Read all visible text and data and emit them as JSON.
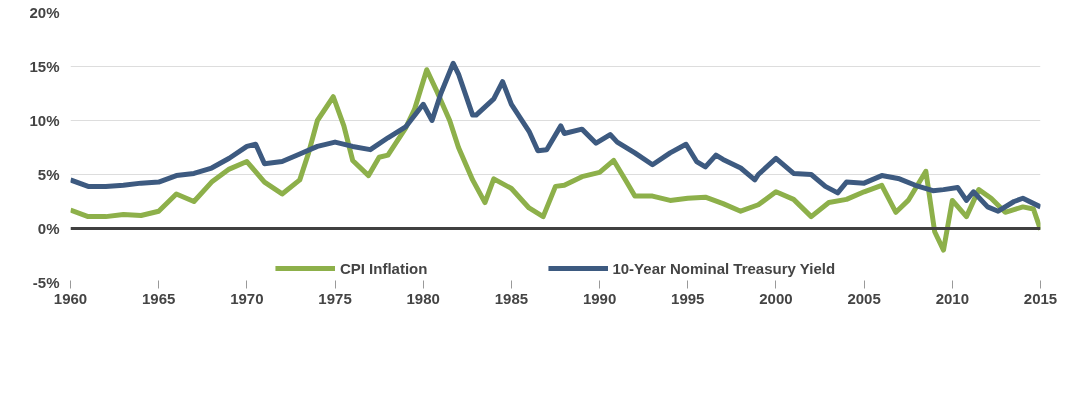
{
  "chart_data": {
    "type": "line",
    "xlim": [
      1960,
      2015
    ],
    "xticks": [
      1960,
      1965,
      1970,
      1975,
      1980,
      1985,
      1990,
      1995,
      2000,
      2005,
      2010,
      2015
    ],
    "ylim": [
      -5,
      20
    ],
    "yticks": [
      {
        "value": -5,
        "label": "-5%"
      },
      {
        "value": 0,
        "label": "0%"
      },
      {
        "value": 5,
        "label": "5%"
      },
      {
        "value": 10,
        "label": "10%"
      },
      {
        "value": 15,
        "label": "15%"
      },
      {
        "value": 20,
        "label": "20%"
      }
    ],
    "grid": "y",
    "legend": "bottom",
    "line_style": "solid",
    "marker": "none",
    "ref_lines": [
      {
        "axis": "y",
        "value": 0,
        "label": null,
        "color": "#404040"
      }
    ],
    "series": [
      {
        "name": "CPI Inflation",
        "color": "#8db04a",
        "x": [
          1960,
          1961,
          1962,
          1963,
          1964,
          1965,
          1966,
          1967,
          1968,
          1969,
          1970,
          1971,
          1972,
          1973,
          1973.5,
          1974,
          1974.9,
          1975.5,
          1976,
          1976.9,
          1977.5,
          1978,
          1979,
          1979.5,
          1980.2,
          1980.8,
          1981.5,
          1982,
          1982.8,
          1983.5,
          1984,
          1985,
          1986,
          1986.8,
          1987.5,
          1988,
          1989,
          1990,
          1990.8,
          1991.5,
          1992,
          1993,
          1994,
          1995,
          1996,
          1997,
          1998,
          1999,
          2000,
          2001,
          2002,
          2003,
          2004,
          2005,
          2006,
          2006.8,
          2007.5,
          2008.5,
          2009,
          2009.5,
          2010,
          2010.8,
          2011.5,
          2012.2,
          2013,
          2014,
          2014.6,
          2015
        ],
        "values": [
          1.7,
          1.1,
          1.1,
          1.3,
          1.2,
          1.6,
          3.2,
          2.5,
          4.3,
          5.5,
          6.2,
          4.3,
          3.2,
          4.5,
          7,
          10,
          12.2,
          9.5,
          6.3,
          4.9,
          6.6,
          6.8,
          9.3,
          11,
          14.7,
          12.6,
          10,
          7.5,
          4.5,
          2.4,
          4.6,
          3.7,
          1.9,
          1.1,
          3.9,
          4,
          4.8,
          5.2,
          6.3,
          4.4,
          3,
          3,
          2.6,
          2.8,
          2.9,
          2.3,
          1.6,
          2.2,
          3.4,
          2.7,
          1.1,
          2.4,
          2.7,
          3.4,
          4,
          1.5,
          2.6,
          5.3,
          -0.3,
          -2,
          2.6,
          1.1,
          3.6,
          2.8,
          1.5,
          2,
          1.8,
          -0.1
        ]
      },
      {
        "name": "10-Year Nominal Treasury Yield",
        "color": "#3d5a80",
        "x": [
          1960,
          1961,
          1962,
          1963,
          1964,
          1965,
          1966,
          1967,
          1968,
          1969,
          1970,
          1970.5,
          1971,
          1972,
          1973,
          1974,
          1975,
          1976,
          1977,
          1978,
          1979,
          1980,
          1980.5,
          1981,
          1981.7,
          1982,
          1982.8,
          1983,
          1984,
          1984.5,
          1985,
          1986,
          1986.5,
          1987,
          1987.8,
          1988,
          1989,
          1989.8,
          1990.6,
          1991,
          1992,
          1993,
          1994,
          1994.9,
          1995.5,
          1996,
          1996.6,
          1997,
          1998,
          1998.8,
          1999,
          2000,
          2001,
          2002,
          2002.8,
          2003.5,
          2004,
          2005,
          2006,
          2007,
          2007.9,
          2008.9,
          2009.5,
          2010.3,
          2010.8,
          2011.2,
          2012,
          2012.6,
          2013.5,
          2014,
          2015
        ],
        "values": [
          4.5,
          3.9,
          3.9,
          4,
          4.2,
          4.3,
          4.9,
          5.1,
          5.6,
          6.5,
          7.6,
          7.8,
          6,
          6.2,
          6.9,
          7.6,
          8,
          7.6,
          7.3,
          8.4,
          9.4,
          11.5,
          10,
          12.5,
          15.3,
          14.3,
          10.5,
          10.5,
          12,
          13.6,
          11.5,
          9,
          7.2,
          7.3,
          9.5,
          8.8,
          9.2,
          7.9,
          8.7,
          8,
          7,
          5.9,
          7,
          7.8,
          6.2,
          5.7,
          6.8,
          6.4,
          5.6,
          4.5,
          5,
          6.5,
          5.1,
          5,
          3.9,
          3.3,
          4.3,
          4.2,
          4.9,
          4.6,
          4,
          3.5,
          3.6,
          3.8,
          2.6,
          3.4,
          2,
          1.6,
          2.5,
          2.8,
          2
        ]
      }
    ]
  }
}
